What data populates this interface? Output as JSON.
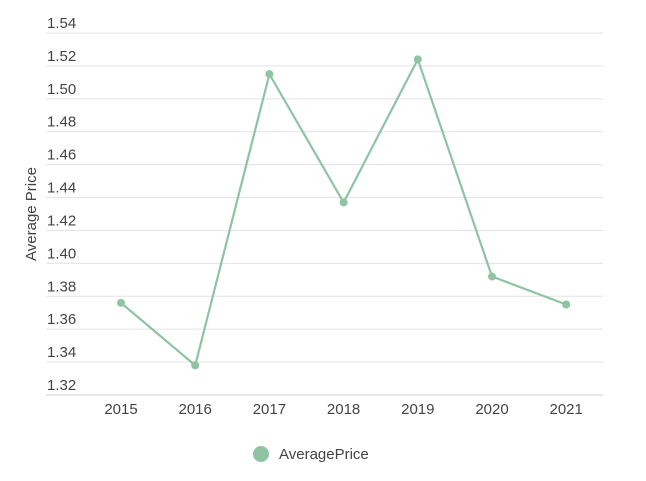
{
  "chart_data": {
    "type": "line",
    "title": "",
    "xlabel": "",
    "ylabel": "Average Price",
    "categories": [
      "2015",
      "2016",
      "2017",
      "2018",
      "2019",
      "2020",
      "2021"
    ],
    "series": [
      {
        "name": "AveragePrice",
        "color": "#8ec4a2",
        "values": [
          1.376,
          1.338,
          1.515,
          1.437,
          1.524,
          1.392,
          1.375
        ]
      }
    ],
    "ylim": [
      1.32,
      1.54
    ],
    "yticks": [
      "1.32",
      "1.34",
      "1.36",
      "1.38",
      "1.40",
      "1.42",
      "1.44",
      "1.46",
      "1.48",
      "1.50",
      "1.52",
      "1.54"
    ],
    "grid": true,
    "legend": "bottom-center"
  }
}
